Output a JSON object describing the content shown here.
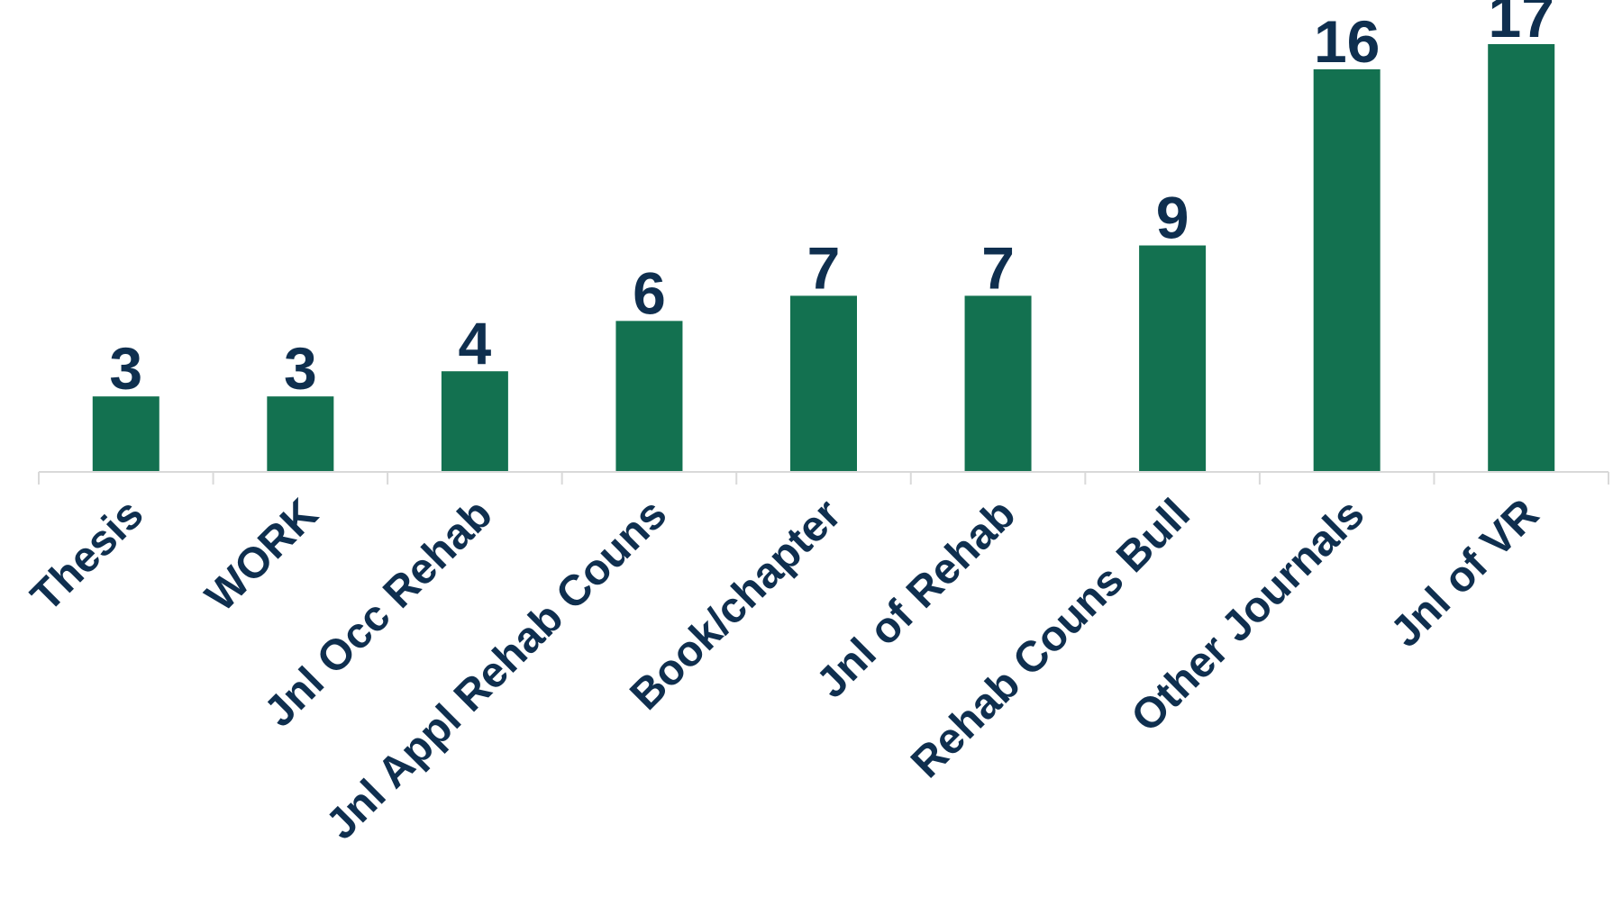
{
  "chart_data": {
    "type": "bar",
    "title": "",
    "xlabel": "",
    "ylabel": "",
    "categories": [
      "Thesis",
      "WORK",
      "Jnl Occ Rehab",
      "Jnl Appl Rehab Couns",
      "Book/chapter",
      "Jnl of Rehab",
      "Rehab Couns Bull",
      "Other Journals",
      "Jnl of VR"
    ],
    "values": [
      3,
      3,
      4,
      6,
      7,
      7,
      9,
      16,
      17
    ],
    "ylim": [
      0,
      17
    ],
    "grid": false,
    "legend": "none",
    "data_labels": true
  },
  "colors": {
    "bar": "#137150",
    "text": "#0f2f4f",
    "axis": "#d9d9d9"
  }
}
